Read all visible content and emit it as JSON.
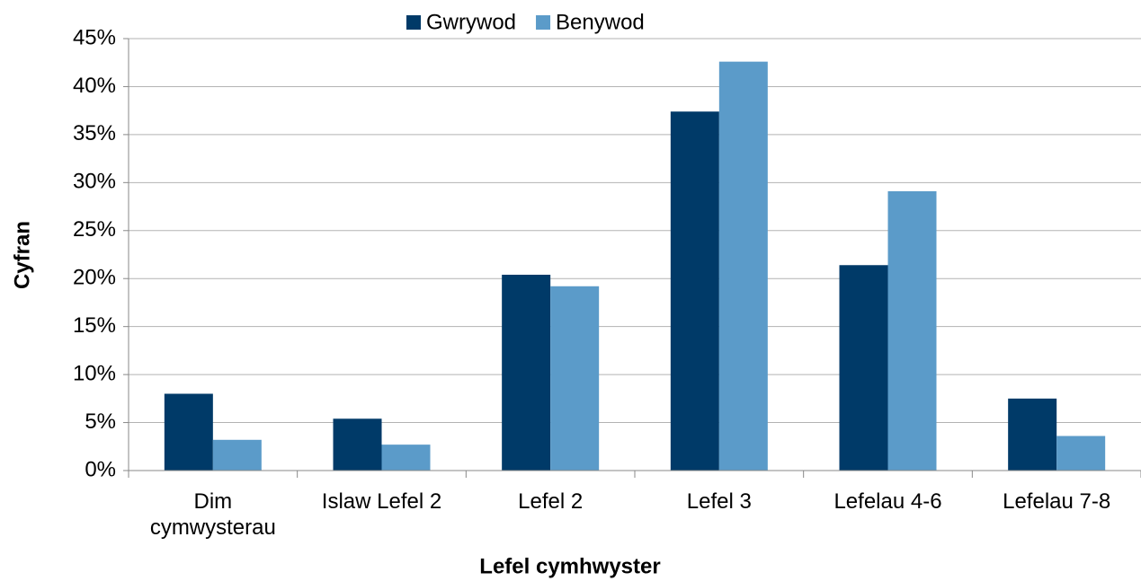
{
  "chart_data": {
    "type": "bar",
    "xlabel": "Lefel cymhwyster",
    "ylabel": "Cyfran",
    "categories": [
      "Dim cymwysterau",
      "Islaw Lefel 2",
      "Lefel 2",
      "Lefel 3",
      "Lefelau 4-6",
      "Lefelau 7-8"
    ],
    "series": [
      {
        "name": "Gwrywod",
        "color": "#003a68",
        "values": [
          8.0,
          5.4,
          20.4,
          37.4,
          21.4,
          7.5
        ]
      },
      {
        "name": "Benywod",
        "color": "#5b9bc9",
        "values": [
          3.2,
          2.7,
          19.2,
          42.6,
          29.1,
          3.6
        ]
      }
    ],
    "ylim": [
      0,
      45
    ],
    "yticks": [
      {
        "value": 0,
        "label": "0%"
      },
      {
        "value": 5,
        "label": "5%"
      },
      {
        "value": 10,
        "label": "10%"
      },
      {
        "value": 15,
        "label": "15%"
      },
      {
        "value": 20,
        "label": "20%"
      },
      {
        "value": 25,
        "label": "25%"
      },
      {
        "value": 30,
        "label": "30%"
      },
      {
        "value": 35,
        "label": "35%"
      },
      {
        "value": 40,
        "label": "40%"
      },
      {
        "value": 45,
        "label": "45%"
      }
    ],
    "grid": true,
    "legend": "top"
  }
}
